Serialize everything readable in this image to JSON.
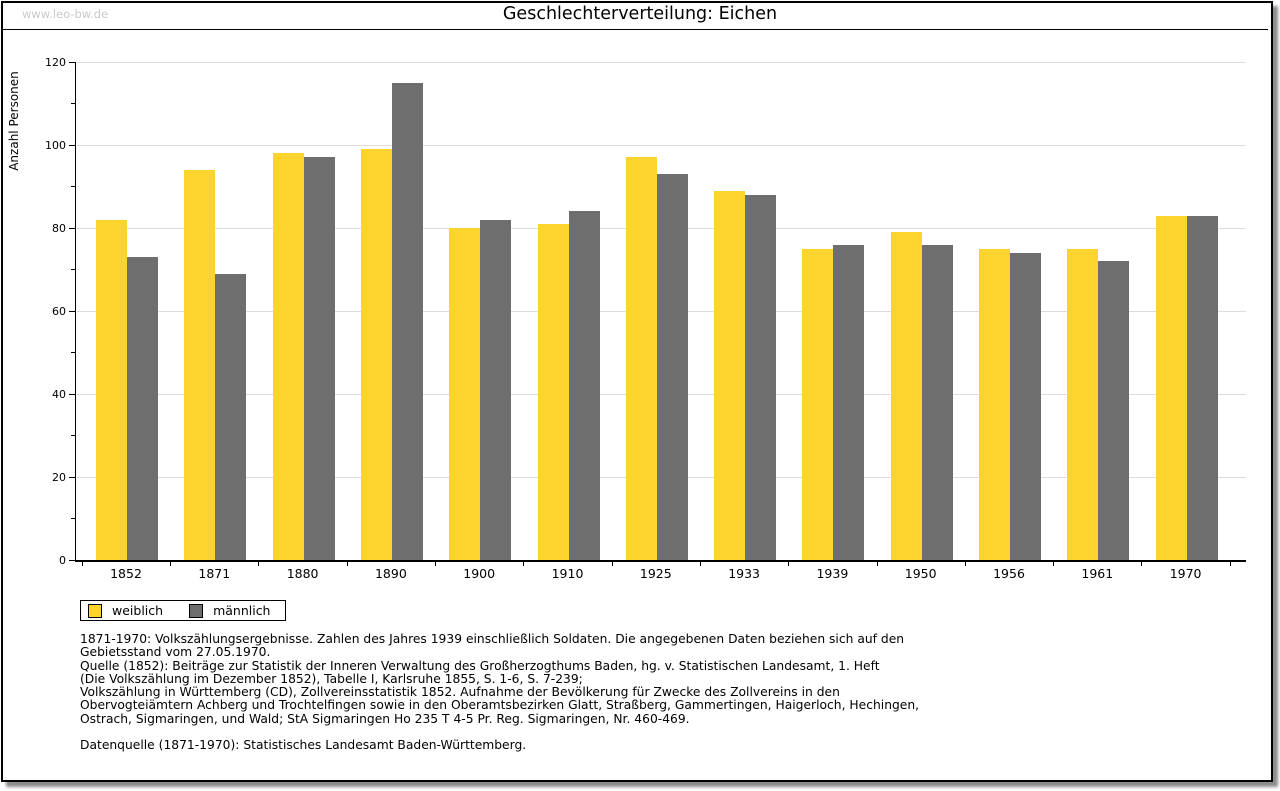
{
  "watermark": "www.leo-bw.de",
  "title": "Geschlechterverteilung: Eichen",
  "chart_data": {
    "type": "bar",
    "title": "Geschlechterverteilung: Eichen",
    "ylabel": "Anzahl Personen",
    "xlabel": "",
    "ylim": [
      0,
      120
    ],
    "ytick_step": 20,
    "yminor_step": 10,
    "grid": true,
    "legend_position": "bottom-left",
    "categories": [
      "1852",
      "1871",
      "1880",
      "1890",
      "1900",
      "1910",
      "1925",
      "1933",
      "1939",
      "1950",
      "1956",
      "1961",
      "1970"
    ],
    "series": [
      {
        "name": "weiblich",
        "color": "#fcd42d",
        "values": [
          82,
          94,
          98,
          99,
          80,
          81,
          97,
          89,
          75,
          79,
          75,
          75,
          83
        ]
      },
      {
        "name": "männlich",
        "color": "#6e6e6e",
        "values": [
          73,
          69,
          97,
          115,
          82,
          84,
          93,
          88,
          76,
          76,
          74,
          72,
          83
        ]
      }
    ]
  },
  "legend": {
    "items": [
      {
        "label": "weiblich",
        "color": "#fcd42d"
      },
      {
        "label": "männlich",
        "color": "#6e6e6e"
      }
    ]
  },
  "footnotes": {
    "lines": [
      "1871-1970: Volkszählungsergebnisse. Zahlen des Jahres 1939 einschließlich Soldaten. Die angegebenen Daten beziehen sich auf den",
      "Gebietsstand vom 27.05.1970.",
      "Quelle (1852): Beiträge zur Statistik der Inneren Verwaltung des Großherzogthums Baden, hg. v. Statistischen Landesamt, 1. Heft",
      "(Die Volkszählung im Dezember 1852), Tabelle I, Karlsruhe 1855, S. 1-6, S. 7-239;",
      "Volkszählung in Württemberg (CD), Zollvereinsstatistik 1852. Aufnahme der Bevölkerung für Zwecke des Zollvereins in den",
      "Obervogteiämtern Achberg und Trochtelfingen sowie in den Oberamtsbezirken Glatt, Straßberg, Gammertingen, Haigerloch, Hechingen,",
      "Ostrach, Sigmaringen, und Wald; StA Sigmaringen Ho 235 T 4-5 Pr. Reg. Sigmaringen, Nr. 460-469.",
      "",
      "Datenquelle (1871-1970): Statistisches Landesamt Baden-Württemberg."
    ]
  },
  "colors": {
    "bar_female": "#fcd42d",
    "bar_male": "#6e6e6e",
    "gridline": "#dcdcdc",
    "watermark": "#c9c9c9",
    "frame_shadow": "#8c8c8c"
  }
}
